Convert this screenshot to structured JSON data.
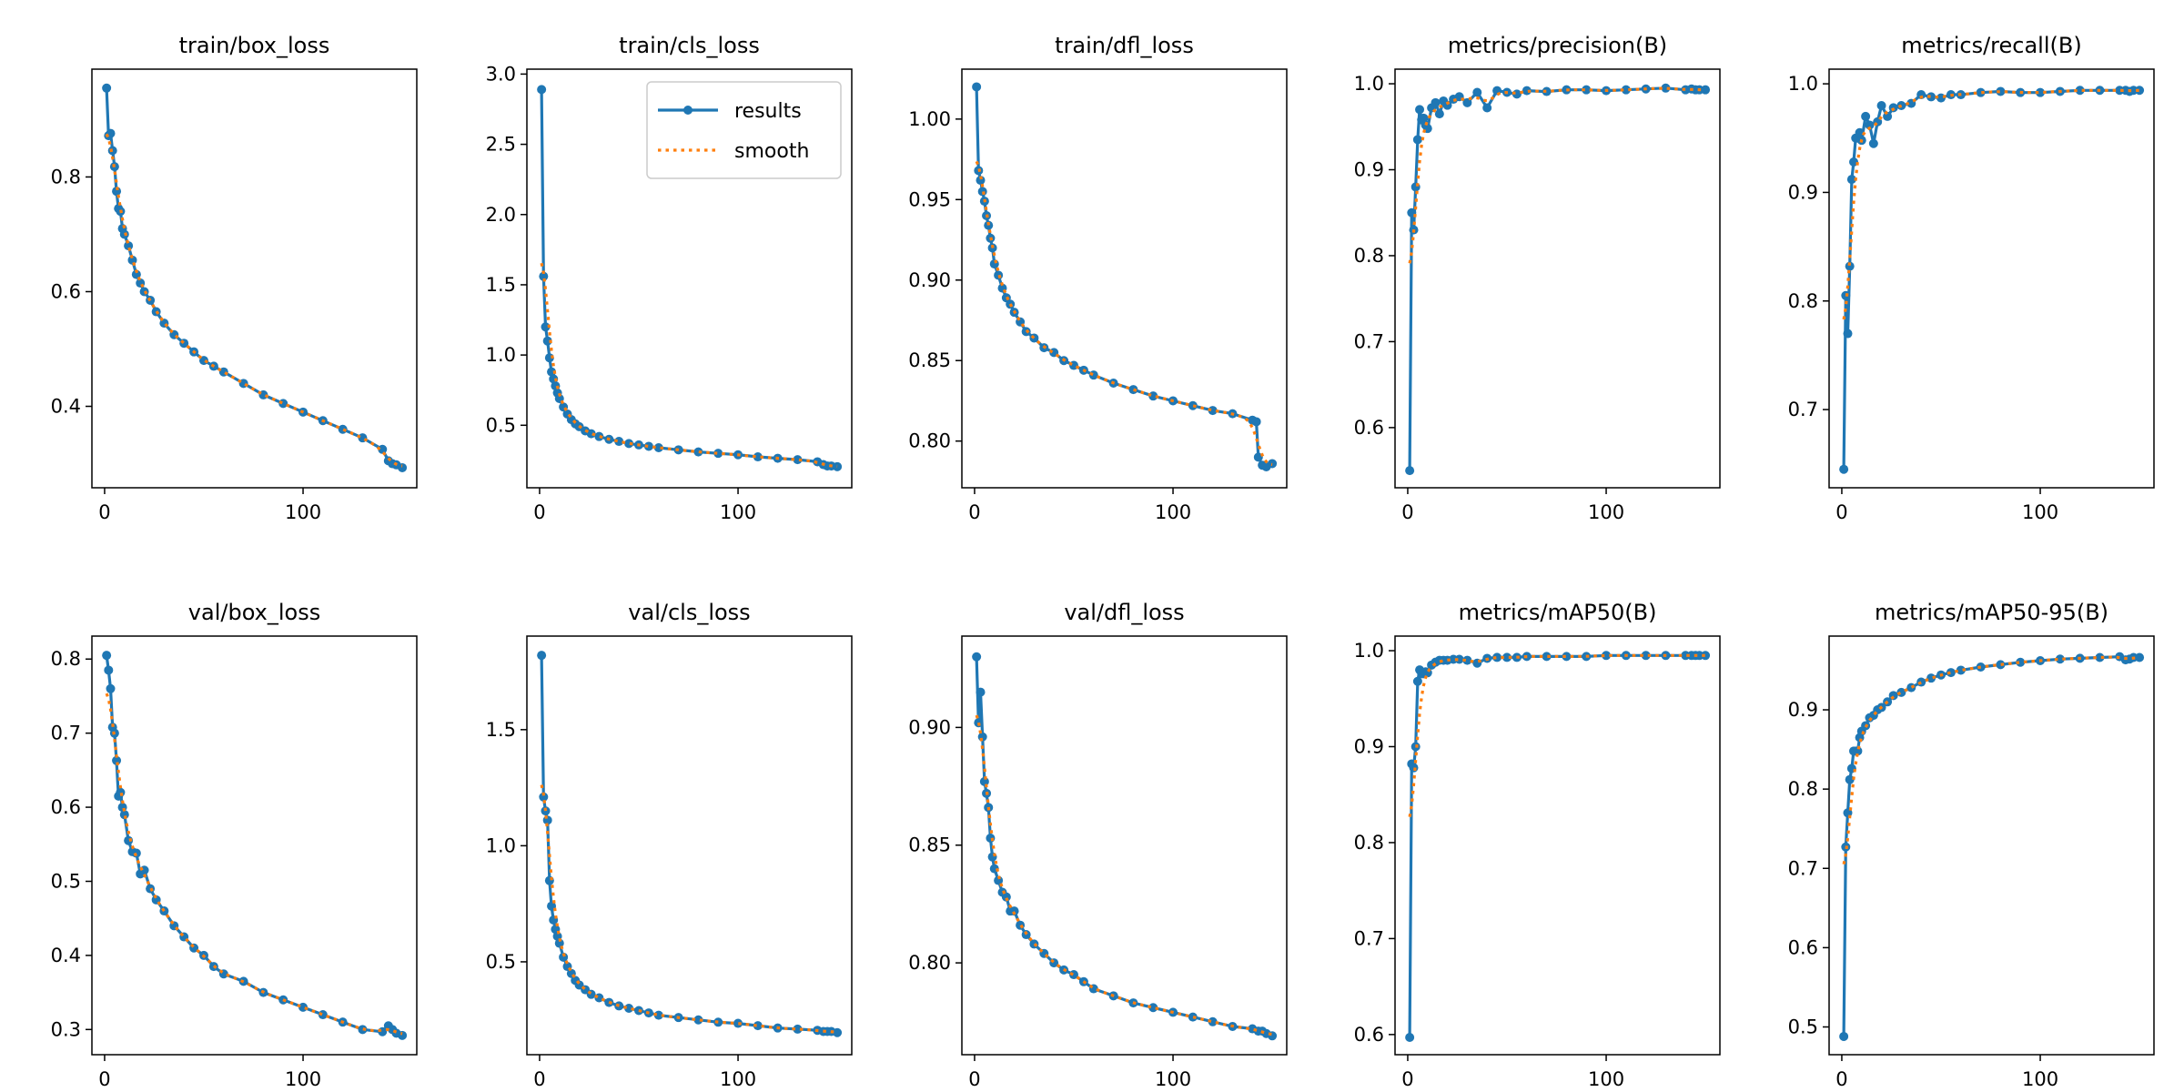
{
  "legend": {
    "results": "results",
    "smooth": "smooth"
  },
  "colors": {
    "results": "#1f77b4",
    "smooth": "#ff7f0e"
  },
  "chart_data": [
    {
      "type": "line",
      "title": "train/box_loss",
      "xlim": [
        -6.4,
        157.3
      ],
      "ylim": [
        0.258,
        0.988
      ],
      "xticks": [
        0,
        100
      ],
      "xtick_labels": [
        "0",
        "100"
      ],
      "yticks": [
        0.4,
        0.6,
        0.8
      ],
      "ytick_labels": [
        "0.4",
        "0.6",
        "0.8"
      ],
      "x": [
        1,
        2,
        3,
        4,
        5,
        6,
        7,
        8,
        9,
        10,
        12,
        14,
        16,
        18,
        20,
        23,
        26,
        30,
        35,
        40,
        45,
        50,
        55,
        60,
        70,
        80,
        90,
        100,
        110,
        120,
        130,
        140,
        143,
        145,
        147,
        150
      ],
      "y": [
        0.955,
        0.872,
        0.876,
        0.846,
        0.818,
        0.775,
        0.745,
        0.74,
        0.71,
        0.7,
        0.68,
        0.655,
        0.63,
        0.615,
        0.6,
        0.585,
        0.565,
        0.545,
        0.525,
        0.51,
        0.495,
        0.48,
        0.47,
        0.46,
        0.44,
        0.42,
        0.405,
        0.39,
        0.375,
        0.36,
        0.345,
        0.325,
        0.305,
        0.3,
        0.298,
        0.293
      ]
    },
    {
      "type": "line",
      "title": "train/cls_loss",
      "xlim": [
        -6.4,
        157.3
      ],
      "ylim": [
        0.055,
        3.035
      ],
      "legend": "top-right",
      "xticks": [
        0,
        100
      ],
      "xtick_labels": [
        "0",
        "100"
      ],
      "yticks": [
        0.5,
        1.0,
        1.5,
        2.0,
        2.5,
        3.0
      ],
      "ytick_labels": [
        "0.5",
        "1.0",
        "1.5",
        "2.0",
        "2.5",
        "3.0"
      ],
      "x": [
        1,
        2,
        3,
        4,
        5,
        6,
        7,
        8,
        9,
        10,
        12,
        14,
        16,
        18,
        20,
        23,
        26,
        30,
        35,
        40,
        45,
        50,
        55,
        60,
        70,
        80,
        90,
        100,
        110,
        120,
        130,
        140,
        143,
        145,
        147,
        150
      ],
      "y": [
        2.89,
        1.56,
        1.2,
        1.1,
        0.98,
        0.88,
        0.83,
        0.78,
        0.73,
        0.69,
        0.63,
        0.58,
        0.54,
        0.51,
        0.49,
        0.46,
        0.44,
        0.42,
        0.4,
        0.385,
        0.37,
        0.36,
        0.35,
        0.34,
        0.325,
        0.31,
        0.3,
        0.29,
        0.275,
        0.265,
        0.255,
        0.24,
        0.22,
        0.21,
        0.21,
        0.205
      ]
    },
    {
      "type": "line",
      "title": "train/dfl_loss",
      "xlim": [
        -6.4,
        157.3
      ],
      "ylim": [
        0.771,
        1.031
      ],
      "xticks": [
        0,
        100
      ],
      "xtick_labels": [
        "0",
        "100"
      ],
      "yticks": [
        0.8,
        0.85,
        0.9,
        0.95,
        1.0
      ],
      "ytick_labels": [
        "0.80",
        "0.85",
        "0.90",
        "0.95",
        "1.00"
      ],
      "x": [
        1,
        2,
        3,
        4,
        5,
        6,
        7,
        8,
        9,
        10,
        12,
        14,
        16,
        18,
        20,
        23,
        26,
        30,
        35,
        40,
        45,
        50,
        55,
        60,
        70,
        80,
        90,
        100,
        110,
        120,
        130,
        140,
        142,
        143,
        145,
        147,
        150
      ],
      "y": [
        1.02,
        0.968,
        0.962,
        0.955,
        0.949,
        0.94,
        0.934,
        0.926,
        0.92,
        0.91,
        0.903,
        0.895,
        0.889,
        0.885,
        0.88,
        0.874,
        0.868,
        0.864,
        0.858,
        0.855,
        0.85,
        0.847,
        0.844,
        0.841,
        0.836,
        0.832,
        0.828,
        0.825,
        0.822,
        0.819,
        0.817,
        0.813,
        0.812,
        0.79,
        0.785,
        0.784,
        0.786
      ]
    },
    {
      "type": "line",
      "title": "metrics/precision(B)",
      "xlim": [
        -6.4,
        157.3
      ],
      "ylim": [
        0.53,
        1.017
      ],
      "xticks": [
        0,
        100
      ],
      "xtick_labels": [
        "0",
        "100"
      ],
      "yticks": [
        0.6,
        0.7,
        0.8,
        0.9,
        1.0
      ],
      "ytick_labels": [
        "0.6",
        "0.7",
        "0.8",
        "0.9",
        "1.0"
      ],
      "x": [
        1,
        2,
        3,
        4,
        5,
        6,
        7,
        8,
        9,
        10,
        12,
        14,
        16,
        18,
        20,
        23,
        26,
        30,
        35,
        40,
        45,
        50,
        55,
        60,
        70,
        80,
        90,
        100,
        110,
        120,
        130,
        140,
        143,
        145,
        147,
        150
      ],
      "y": [
        0.55,
        0.85,
        0.83,
        0.88,
        0.935,
        0.97,
        0.958,
        0.96,
        0.952,
        0.948,
        0.972,
        0.978,
        0.965,
        0.98,
        0.975,
        0.982,
        0.985,
        0.978,
        0.99,
        0.972,
        0.992,
        0.99,
        0.988,
        0.992,
        0.991,
        0.993,
        0.993,
        0.992,
        0.993,
        0.994,
        0.995,
        0.993,
        0.994,
        0.993,
        0.993,
        0.993
      ]
    },
    {
      "type": "line",
      "title": "metrics/recall(B)",
      "xlim": [
        -6.4,
        157.3
      ],
      "ylim": [
        0.628,
        1.0135
      ],
      "xticks": [
        0,
        100
      ],
      "xtick_labels": [
        "0",
        "100"
      ],
      "yticks": [
        0.7,
        0.8,
        0.9,
        1.0
      ],
      "ytick_labels": [
        "0.7",
        "0.8",
        "0.9",
        "1.0"
      ],
      "x": [
        1,
        2,
        3,
        4,
        5,
        6,
        7,
        8,
        9,
        10,
        12,
        14,
        16,
        18,
        20,
        23,
        26,
        30,
        35,
        40,
        45,
        50,
        55,
        60,
        70,
        80,
        90,
        100,
        110,
        120,
        130,
        140,
        143,
        145,
        147,
        150
      ],
      "y": [
        0.645,
        0.805,
        0.77,
        0.832,
        0.912,
        0.928,
        0.95,
        0.95,
        0.955,
        0.948,
        0.97,
        0.962,
        0.945,
        0.965,
        0.98,
        0.97,
        0.978,
        0.98,
        0.982,
        0.99,
        0.988,
        0.987,
        0.99,
        0.99,
        0.992,
        0.993,
        0.992,
        0.992,
        0.993,
        0.994,
        0.994,
        0.994,
        0.994,
        0.993,
        0.994,
        0.994
      ]
    },
    {
      "type": "line",
      "title": "val/box_loss",
      "xlim": [
        -6.4,
        157.3
      ],
      "ylim": [
        0.266,
        0.831
      ],
      "xticks": [
        0,
        100
      ],
      "xtick_labels": [
        "0",
        "100"
      ],
      "yticks": [
        0.3,
        0.4,
        0.5,
        0.6,
        0.7,
        0.8
      ],
      "ytick_labels": [
        "0.3",
        "0.4",
        "0.5",
        "0.6",
        "0.7",
        "0.8"
      ],
      "x": [
        1,
        2,
        3,
        4,
        5,
        6,
        7,
        8,
        9,
        10,
        12,
        14,
        16,
        18,
        20,
        23,
        26,
        30,
        35,
        40,
        45,
        50,
        55,
        60,
        70,
        80,
        90,
        100,
        110,
        120,
        130,
        140,
        143,
        145,
        147,
        150
      ],
      "y": [
        0.805,
        0.785,
        0.76,
        0.708,
        0.7,
        0.663,
        0.615,
        0.62,
        0.6,
        0.59,
        0.555,
        0.54,
        0.538,
        0.51,
        0.515,
        0.49,
        0.475,
        0.46,
        0.44,
        0.425,
        0.41,
        0.4,
        0.385,
        0.375,
        0.365,
        0.35,
        0.34,
        0.33,
        0.32,
        0.31,
        0.3,
        0.297,
        0.305,
        0.3,
        0.295,
        0.292
      ]
    },
    {
      "type": "line",
      "title": "val/cls_loss",
      "xlim": [
        -6.4,
        157.3
      ],
      "ylim": [
        0.1,
        1.903
      ],
      "xticks": [
        0,
        100
      ],
      "xtick_labels": [
        "0",
        "100"
      ],
      "yticks": [
        0.5,
        1.0,
        1.5
      ],
      "ytick_labels": [
        "0.5",
        "1.0",
        "1.5"
      ],
      "x": [
        1,
        2,
        3,
        4,
        5,
        6,
        7,
        8,
        9,
        10,
        12,
        14,
        16,
        18,
        20,
        23,
        26,
        30,
        35,
        40,
        45,
        50,
        55,
        60,
        70,
        80,
        90,
        100,
        110,
        120,
        130,
        140,
        143,
        145,
        147,
        150
      ],
      "y": [
        1.82,
        1.21,
        1.15,
        1.11,
        0.85,
        0.74,
        0.68,
        0.64,
        0.61,
        0.58,
        0.52,
        0.48,
        0.45,
        0.42,
        0.4,
        0.38,
        0.36,
        0.345,
        0.325,
        0.31,
        0.3,
        0.29,
        0.28,
        0.27,
        0.26,
        0.25,
        0.24,
        0.235,
        0.225,
        0.215,
        0.21,
        0.205,
        0.2,
        0.2,
        0.2,
        0.195
      ]
    },
    {
      "type": "line",
      "title": "val/dfl_loss",
      "xlim": [
        -6.4,
        157.3
      ],
      "ylim": [
        0.761,
        0.9388
      ],
      "xticks": [
        0,
        100
      ],
      "xtick_labels": [
        "0",
        "100"
      ],
      "yticks": [
        0.8,
        0.85,
        0.9
      ],
      "ytick_labels": [
        "0.80",
        "0.85",
        "0.90"
      ],
      "x": [
        1,
        2,
        3,
        4,
        5,
        6,
        7,
        8,
        9,
        10,
        12,
        14,
        16,
        18,
        20,
        23,
        26,
        30,
        35,
        40,
        45,
        50,
        55,
        60,
        70,
        80,
        90,
        100,
        110,
        120,
        130,
        140,
        143,
        145,
        147,
        150
      ],
      "y": [
        0.93,
        0.902,
        0.915,
        0.896,
        0.877,
        0.872,
        0.866,
        0.853,
        0.845,
        0.84,
        0.835,
        0.83,
        0.828,
        0.822,
        0.822,
        0.816,
        0.812,
        0.808,
        0.804,
        0.8,
        0.797,
        0.795,
        0.792,
        0.789,
        0.786,
        0.783,
        0.781,
        0.779,
        0.777,
        0.775,
        0.773,
        0.772,
        0.771,
        0.771,
        0.77,
        0.769
      ]
    },
    {
      "type": "line",
      "title": "metrics/mAP50(B)",
      "xlim": [
        -6.4,
        157.3
      ],
      "ylim": [
        0.579,
        1.0152
      ],
      "xticks": [
        0,
        100
      ],
      "xtick_labels": [
        "0",
        "100"
      ],
      "yticks": [
        0.6,
        0.7,
        0.8,
        0.9,
        1.0
      ],
      "ytick_labels": [
        "0.6",
        "0.7",
        "0.8",
        "0.9",
        "1.0"
      ],
      "x": [
        1,
        2,
        3,
        4,
        5,
        6,
        7,
        8,
        9,
        10,
        12,
        14,
        16,
        18,
        20,
        23,
        26,
        30,
        35,
        40,
        45,
        50,
        55,
        60,
        70,
        80,
        90,
        100,
        110,
        120,
        130,
        140,
        143,
        145,
        147,
        150
      ],
      "y": [
        0.597,
        0.882,
        0.878,
        0.9,
        0.968,
        0.98,
        0.976,
        0.976,
        0.978,
        0.977,
        0.985,
        0.988,
        0.99,
        0.99,
        0.99,
        0.991,
        0.991,
        0.99,
        0.987,
        0.992,
        0.993,
        0.993,
        0.993,
        0.994,
        0.994,
        0.994,
        0.994,
        0.995,
        0.995,
        0.995,
        0.995,
        0.995,
        0.995,
        0.995,
        0.995,
        0.995
      ]
    },
    {
      "type": "line",
      "title": "metrics/mAP50-95(B)",
      "xlim": [
        -6.4,
        157.3
      ],
      "ylim": [
        0.465,
        0.993
      ],
      "xticks": [
        0,
        100
      ],
      "xtick_labels": [
        "0",
        "100"
      ],
      "yticks": [
        0.5,
        0.6,
        0.7,
        0.8,
        0.9
      ],
      "ytick_labels": [
        "0.5",
        "0.6",
        "0.7",
        "0.8",
        "0.9"
      ],
      "x": [
        1,
        2,
        3,
        4,
        5,
        6,
        7,
        8,
        9,
        10,
        12,
        14,
        16,
        18,
        20,
        23,
        26,
        30,
        35,
        40,
        45,
        50,
        55,
        60,
        70,
        80,
        90,
        100,
        110,
        120,
        130,
        140,
        143,
        145,
        147,
        150
      ],
      "y": [
        0.488,
        0.727,
        0.77,
        0.812,
        0.826,
        0.848,
        0.848,
        0.848,
        0.865,
        0.873,
        0.88,
        0.89,
        0.893,
        0.9,
        0.903,
        0.91,
        0.918,
        0.922,
        0.928,
        0.935,
        0.94,
        0.944,
        0.947,
        0.95,
        0.954,
        0.957,
        0.96,
        0.962,
        0.964,
        0.965,
        0.966,
        0.967,
        0.963,
        0.964,
        0.966,
        0.966
      ]
    }
  ]
}
